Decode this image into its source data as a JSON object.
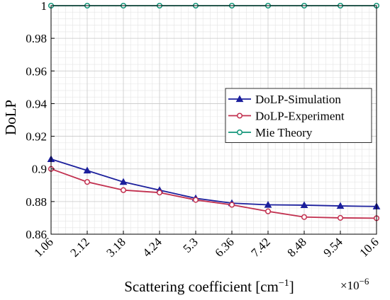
{
  "chart_data": {
    "type": "line",
    "xlabel": "Scattering coefficient [cm",
    "xlabel_superscript": "−1",
    "xlabel_suffix": "]",
    "x_multiplier": "×10",
    "x_multiplier_exponent": "−6",
    "ylabel": "DoLP",
    "x_ticks": [
      "1.06",
      "2.12",
      "3.18",
      "4.24",
      "5.3",
      "6.36",
      "7.42",
      "8.48",
      "9.54",
      "10.6"
    ],
    "x": [
      1.06,
      2.12,
      3.18,
      4.24,
      5.3,
      6.36,
      7.42,
      8.48,
      9.54,
      10.6
    ],
    "xlim": [
      1.06,
      10.6
    ],
    "ylim": [
      0.86,
      1.0
    ],
    "y_ticks": [
      "0.86",
      "0.88",
      "0.9",
      "0.92",
      "0.94",
      "0.96",
      "0.98",
      "1"
    ],
    "y_tick_values": [
      0.86,
      0.88,
      0.9,
      0.92,
      0.94,
      0.96,
      0.98,
      1.0
    ],
    "grid": true,
    "minor_grid": true,
    "legend_position": "right",
    "series": [
      {
        "name": "DoLP-Simulation",
        "color": "#1b1f9c",
        "marker": "triangle",
        "values": [
          0.906,
          0.899,
          0.892,
          0.887,
          0.882,
          0.879,
          0.878,
          0.8778,
          0.8773,
          0.877
        ]
      },
      {
        "name": "DoLP-Experiment",
        "color": "#c2304f",
        "marker": "circle",
        "values": [
          0.9,
          0.892,
          0.887,
          0.8855,
          0.881,
          0.878,
          0.874,
          0.8705,
          0.87,
          0.8698
        ]
      },
      {
        "name": "Mie Theory",
        "color": "#13967a",
        "marker": "circle",
        "values": [
          1.0,
          1.0,
          1.0,
          1.0,
          1.0,
          1.0,
          1.0,
          1.0,
          1.0,
          1.0
        ]
      }
    ]
  }
}
